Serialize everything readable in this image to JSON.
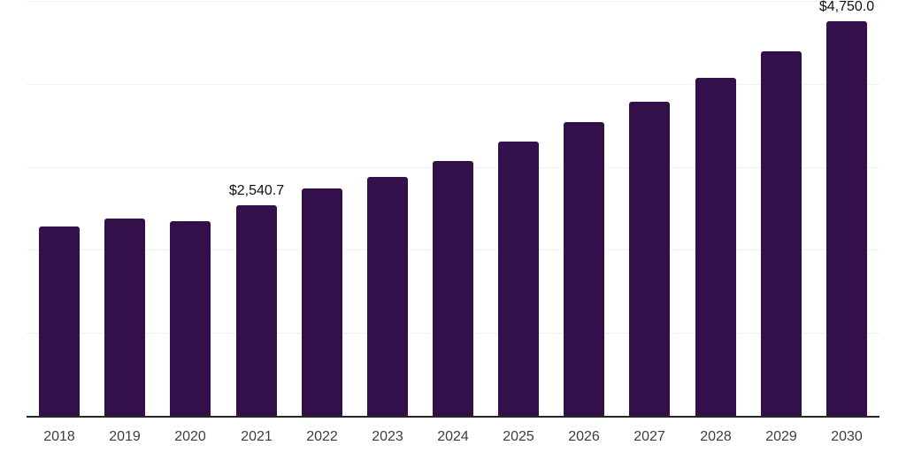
{
  "chart_data": {
    "type": "bar",
    "title": "",
    "xlabel": "",
    "ylabel": "",
    "categories": [
      "2018",
      "2019",
      "2020",
      "2021",
      "2022",
      "2023",
      "2024",
      "2025",
      "2026",
      "2027",
      "2028",
      "2029",
      "2030"
    ],
    "values": [
      2280,
      2375,
      2345,
      2540.7,
      2740,
      2880,
      3070,
      3305,
      3540,
      3785,
      4070,
      4390,
      4750
    ],
    "data_labels": [
      {
        "category": "2021",
        "text": "$2,540.7"
      },
      {
        "category": "2030",
        "text": "$4,750.0"
      }
    ],
    "ylim": [
      0,
      5000
    ],
    "gridline_step": 1000,
    "grid_on": true,
    "legend": "none",
    "colors": {
      "bar": "#34104A",
      "gridline": "#f1f1f1",
      "axis_line": "#262626",
      "tick_label": "#3d3d3d",
      "data_label": "#111111",
      "background": "#ffffff"
    }
  }
}
